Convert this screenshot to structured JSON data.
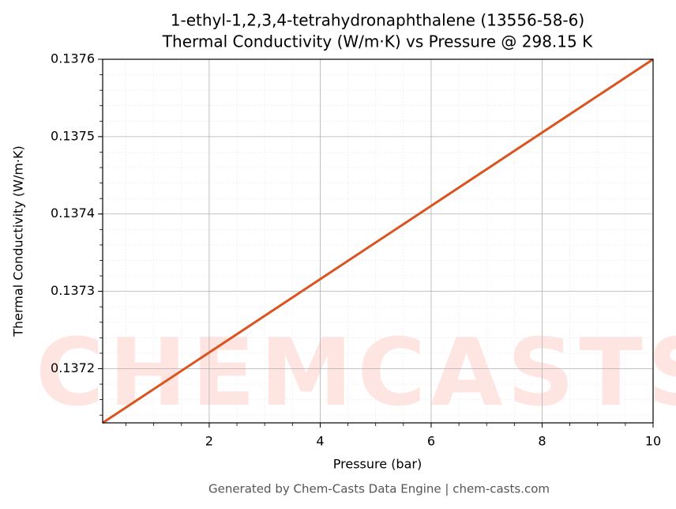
{
  "chart_data": {
    "type": "line",
    "title": "1-ethyl-1,2,3,4-tetrahydronaphthalene (13556-58-6)",
    "subtitle": "Thermal Conductivity (W/m·K) vs Pressure @ 298.15 K",
    "x_label": "Pressure (bar)",
    "y_label": "Thermal Conductivity (W/m·K)",
    "footer": "Generated by Chem-Casts Data Engine | chem-casts.com",
    "watermark": "CHEMCASTS",
    "x": [
      0.08,
      10
    ],
    "series": [
      {
        "name": "Thermal Conductivity",
        "color": "#d9541e",
        "values": [
          0.13713,
          0.1376
        ]
      }
    ],
    "xlim": [
      0.08,
      10
    ],
    "xticks": [
      2,
      4,
      6,
      8,
      10
    ],
    "ylim": [
      0.13713,
      0.1376
    ],
    "yticks": [
      0.1372,
      0.1373,
      0.1374,
      0.1375,
      0.1376
    ],
    "grid": true,
    "minor_grid": true
  }
}
